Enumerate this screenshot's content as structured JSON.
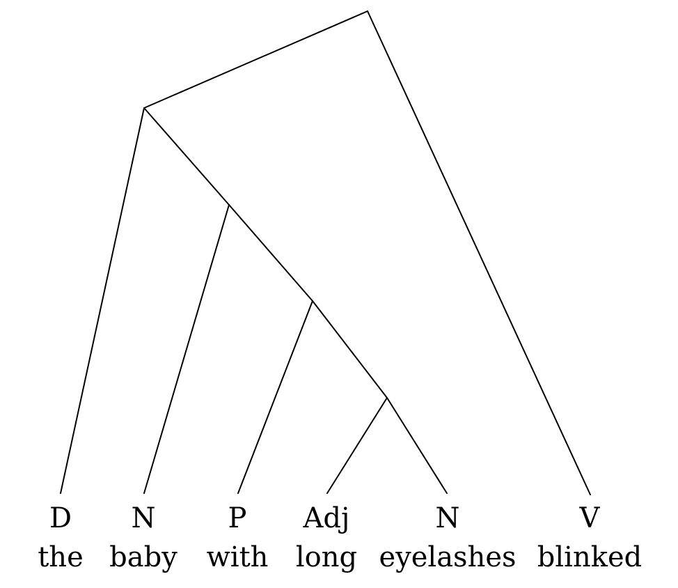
{
  "tree": {
    "leaves": [
      {
        "tag": "D",
        "word": "the"
      },
      {
        "tag": "N",
        "word": "baby"
      },
      {
        "tag": "P",
        "word": "with"
      },
      {
        "tag": "Adj",
        "word": "long"
      },
      {
        "tag": "N",
        "word": "eyelashes"
      },
      {
        "tag": "V",
        "word": "blinked"
      }
    ]
  }
}
